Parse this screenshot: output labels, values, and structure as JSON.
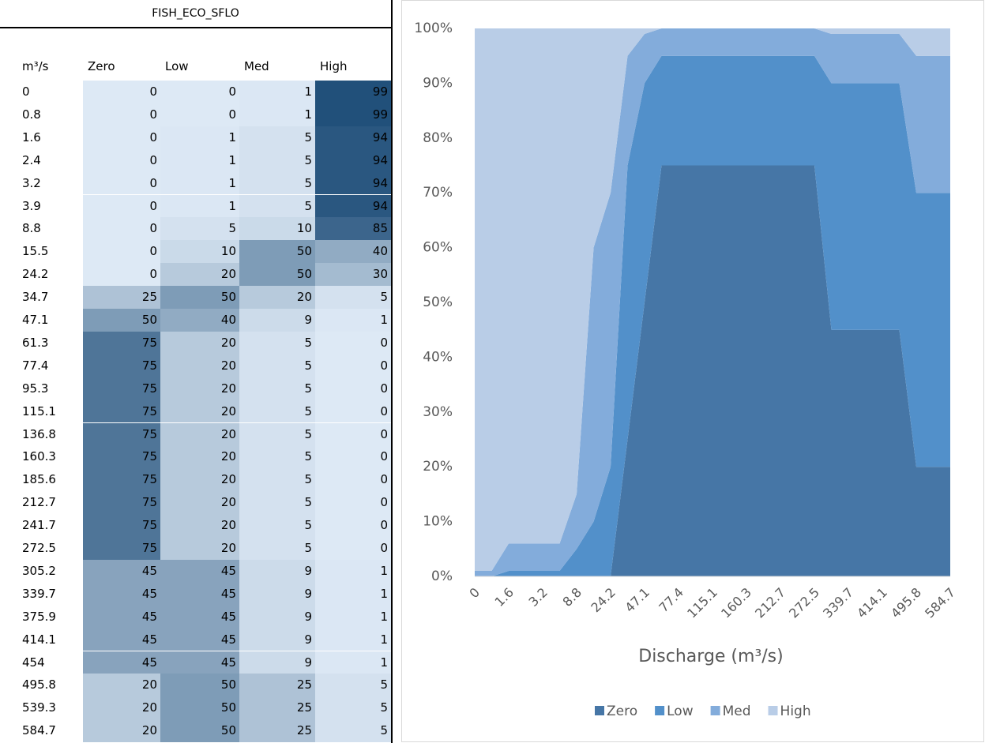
{
  "table": {
    "title": "FISH_ECO_SFLO",
    "header": [
      "m³/s",
      "Zero",
      "Low",
      "Med",
      "High"
    ],
    "heatmap_colors": [
      "#dde9f5",
      "#1f4e79"
    ],
    "rows": [
      [
        "0",
        0,
        0,
        1,
        99
      ],
      [
        "0.8",
        0,
        0,
        1,
        99
      ],
      [
        "1.6",
        0,
        1,
        5,
        94
      ],
      [
        "2.4",
        0,
        1,
        5,
        94
      ],
      [
        "3.2",
        0,
        1,
        5,
        94
      ],
      [
        "3.9",
        0,
        1,
        5,
        94
      ],
      [
        "8.8",
        0,
        5,
        10,
        85
      ],
      [
        "15.5",
        0,
        10,
        50,
        40
      ],
      [
        "24.2",
        0,
        20,
        50,
        30
      ],
      [
        "34.7",
        25,
        50,
        20,
        5
      ],
      [
        "47.1",
        50,
        40,
        9,
        1
      ],
      [
        "61.3",
        75,
        20,
        5,
        0
      ],
      [
        "77.4",
        75,
        20,
        5,
        0
      ],
      [
        "95.3",
        75,
        20,
        5,
        0
      ],
      [
        "115.1",
        75,
        20,
        5,
        0
      ],
      [
        "136.8",
        75,
        20,
        5,
        0
      ],
      [
        "160.3",
        75,
        20,
        5,
        0
      ],
      [
        "185.6",
        75,
        20,
        5,
        0
      ],
      [
        "212.7",
        75,
        20,
        5,
        0
      ],
      [
        "241.7",
        75,
        20,
        5,
        0
      ],
      [
        "272.5",
        75,
        20,
        5,
        0
      ],
      [
        "305.2",
        45,
        45,
        9,
        1
      ],
      [
        "339.7",
        45,
        45,
        9,
        1
      ],
      [
        "375.9",
        45,
        45,
        9,
        1
      ],
      [
        "414.1",
        45,
        45,
        9,
        1
      ],
      [
        "454",
        45,
        45,
        9,
        1
      ],
      [
        "495.8",
        20,
        50,
        25,
        5
      ],
      [
        "539.3",
        20,
        50,
        25,
        5
      ],
      [
        "584.7",
        20,
        50,
        25,
        5
      ]
    ]
  },
  "chart_data": {
    "type": "stacked_area",
    "x_label": "Discharge (m³/s)",
    "categories": [
      "0",
      null,
      "1.6",
      null,
      "3.2",
      null,
      "8.8",
      null,
      "24.2",
      null,
      "47.1",
      null,
      "77.4",
      null,
      "115.1",
      null,
      "160.3",
      null,
      "212.7",
      null,
      "272.5",
      null,
      "339.7",
      null,
      "414.1",
      null,
      "495.8",
      null,
      "584.7"
    ],
    "series": [
      {
        "name": "Zero",
        "color": "#4676a6",
        "values": [
          0,
          0,
          0,
          0,
          0,
          0,
          0,
          0,
          0,
          25,
          50,
          75,
          75,
          75,
          75,
          75,
          75,
          75,
          75,
          75,
          75,
          45,
          45,
          45,
          45,
          45,
          20,
          20,
          20
        ]
      },
      {
        "name": "Low",
        "color": "#5290ca",
        "values": [
          0,
          0,
          1,
          1,
          1,
          1,
          5,
          10,
          20,
          50,
          40,
          20,
          20,
          20,
          20,
          20,
          20,
          20,
          20,
          20,
          20,
          45,
          45,
          45,
          45,
          45,
          50,
          50,
          50
        ]
      },
      {
        "name": "Med",
        "color": "#83acdb",
        "values": [
          1,
          1,
          5,
          5,
          5,
          5,
          10,
          50,
          50,
          20,
          9,
          5,
          5,
          5,
          5,
          5,
          5,
          5,
          5,
          5,
          5,
          9,
          9,
          9,
          9,
          9,
          25,
          25,
          25
        ]
      },
      {
        "name": "High",
        "color": "#b9cde7",
        "values": [
          99,
          99,
          94,
          94,
          94,
          94,
          85,
          40,
          30,
          5,
          1,
          0,
          0,
          0,
          0,
          0,
          0,
          0,
          0,
          0,
          0,
          1,
          1,
          1,
          1,
          1,
          5,
          5,
          5
        ]
      }
    ],
    "ylim": [
      0,
      100
    ],
    "yticks": [
      {
        "value": 0,
        "label": "0%"
      },
      {
        "value": 10,
        "label": "10%"
      },
      {
        "value": 20,
        "label": "20%"
      },
      {
        "value": 30,
        "label": "30%"
      },
      {
        "value": 40,
        "label": "40%"
      },
      {
        "value": 50,
        "label": "50%"
      },
      {
        "value": 60,
        "label": "60%"
      },
      {
        "value": 70,
        "label": "70%"
      },
      {
        "value": 80,
        "label": "80%"
      },
      {
        "value": 90,
        "label": "90%"
      },
      {
        "value": 100,
        "label": "100%"
      }
    ],
    "legend": "bottom"
  }
}
